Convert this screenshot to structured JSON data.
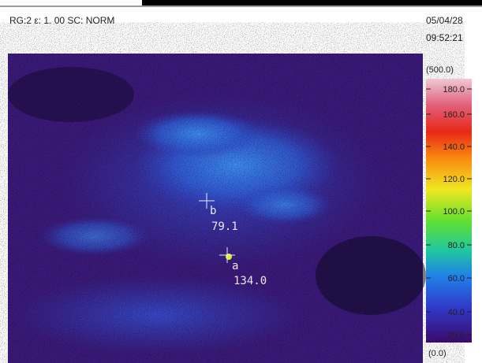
{
  "header": {
    "status": "RG:2 ε: 1. 00 SC: NORM",
    "date": "05/04/28",
    "time": "09:52:21"
  },
  "scale": {
    "max_label": "(500.0)",
    "min_label": "(0.0)",
    "ticks": [
      "180.0",
      "160.0",
      "140.0",
      "120.0",
      "100.0",
      "80.0",
      "60.0",
      "40.0",
      "20.0"
    ]
  },
  "markers": [
    {
      "label": "b",
      "value": "79.1"
    },
    {
      "label": "a",
      "value": "134.0"
    }
  ]
}
